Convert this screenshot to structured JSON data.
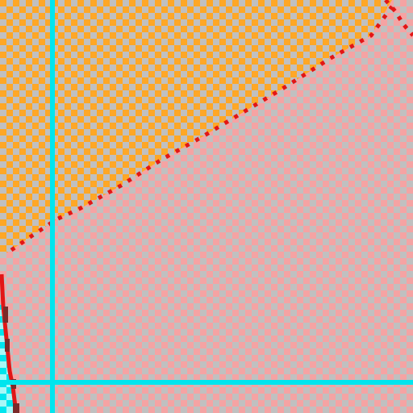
{
  "view": {
    "mode": "zoomed-pixel-canvas",
    "transparency": "checkerboard"
  },
  "colors": {
    "checker_light": "#c0c0c0",
    "orange_region": "#ffa726",
    "pink_region": "#f5a3a3",
    "selection_outline": "#e21616",
    "guide_line": "#00e5ee",
    "cyan_fill": "#a8f7f7",
    "dark_pixel": "#7a2a2a"
  },
  "regions": [
    {
      "name": "orange-region",
      "color_key": "orange_region"
    },
    {
      "name": "pink-region",
      "color_key": "pink_region"
    },
    {
      "name": "cyan-region",
      "color_key": "cyan_fill"
    }
  ],
  "guides": [
    {
      "name": "vertical-guide",
      "orientation": "vertical"
    },
    {
      "name": "horizontal-guide",
      "orientation": "horizontal"
    }
  ]
}
